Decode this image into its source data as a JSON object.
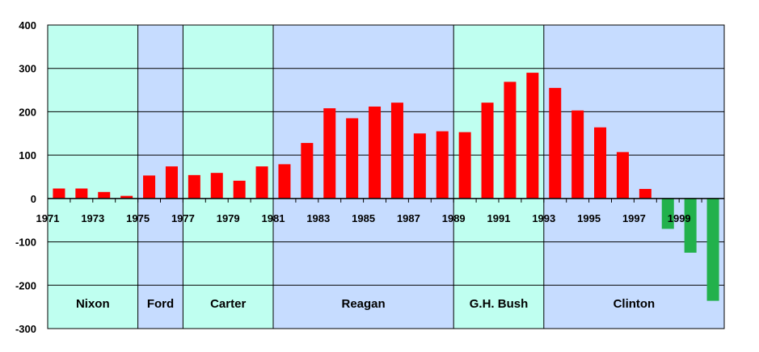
{
  "chart_data": {
    "type": "bar",
    "title": "",
    "xlabel": "",
    "ylabel": "",
    "ylim": [
      -300,
      400
    ],
    "yticks": [
      400,
      300,
      200,
      100,
      0,
      -100,
      -200,
      -300
    ],
    "x": [
      1971,
      1972,
      1973,
      1974,
      1975,
      1976,
      1977,
      1978,
      1979,
      1980,
      1981,
      1982,
      1983,
      1984,
      1985,
      1986,
      1987,
      1988,
      1989,
      1990,
      1991,
      1992,
      1993,
      1994,
      1995,
      1996,
      1997,
      1998,
      1999,
      2000
    ],
    "x_tick_labels": [
      "1971",
      "1973",
      "1975",
      "1977",
      "1979",
      "1981",
      "1983",
      "1985",
      "1987",
      "1989",
      "1991",
      "1993",
      "1995",
      "1997",
      "1999"
    ],
    "values": [
      23,
      23,
      15,
      6,
      53,
      74,
      54,
      59,
      41,
      74,
      79,
      128,
      208,
      185,
      212,
      221,
      150,
      155,
      153,
      221,
      269,
      290,
      255,
      203,
      164,
      107,
      22,
      -70,
      -125,
      -236
    ],
    "grid": true,
    "colors": {
      "positive": "#ff0000",
      "negative": "#22b14c",
      "band_a": "#bffff0",
      "band_b": "#c6dcff"
    },
    "presidencies": [
      {
        "label": "Nixon",
        "start": 1971,
        "end": 1974,
        "color": "band_a"
      },
      {
        "label": "Ford",
        "start": 1975,
        "end": 1976,
        "color": "band_b"
      },
      {
        "label": "Carter",
        "start": 1977,
        "end": 1980,
        "color": "band_a"
      },
      {
        "label": "Reagan",
        "start": 1981,
        "end": 1988,
        "color": "band_b"
      },
      {
        "label": "G.H. Bush",
        "start": 1989,
        "end": 1992,
        "color": "band_a"
      },
      {
        "label": "Clinton",
        "start": 1993,
        "end": 2000,
        "color": "band_b"
      }
    ]
  }
}
